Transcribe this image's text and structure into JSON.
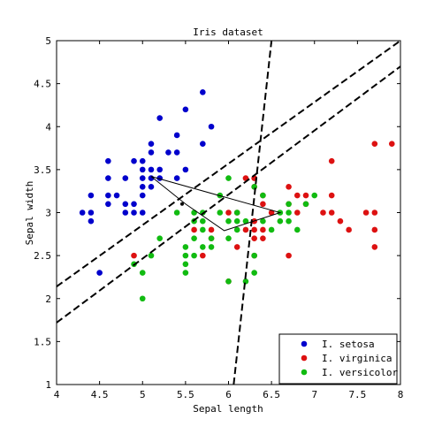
{
  "chart_data": {
    "type": "scatter",
    "title": "Iris dataset",
    "xlabel": "Sepal length",
    "ylabel": "Sepal width",
    "xlim": [
      4,
      8
    ],
    "ylim": [
      1,
      5
    ],
    "xticks": [
      "4",
      "4.5",
      "5",
      "5.5",
      "6",
      "6.5",
      "7",
      "7.5",
      "8"
    ],
    "yticks": [
      "1",
      "1.5",
      "2",
      "2.5",
      "3",
      "3.5",
      "4",
      "4.5",
      "5"
    ],
    "grid": false,
    "legend_position": "bottom-right",
    "series": [
      {
        "name": "I. setosa",
        "color": "#0000cc",
        "points": [
          [
            4.3,
            3.0
          ],
          [
            4.4,
            2.9
          ],
          [
            4.4,
            3.0
          ],
          [
            4.4,
            3.2
          ],
          [
            4.5,
            2.3
          ],
          [
            4.6,
            3.1
          ],
          [
            4.6,
            3.2
          ],
          [
            4.6,
            3.4
          ],
          [
            4.6,
            3.6
          ],
          [
            4.7,
            3.2
          ],
          [
            4.8,
            3.0
          ],
          [
            4.8,
            3.1
          ],
          [
            4.8,
            3.4
          ],
          [
            4.9,
            3.0
          ],
          [
            4.9,
            3.1
          ],
          [
            4.9,
            3.6
          ],
          [
            5.0,
            3.0
          ],
          [
            5.0,
            3.2
          ],
          [
            5.0,
            3.3
          ],
          [
            5.0,
            3.4
          ],
          [
            5.0,
            3.5
          ],
          [
            5.0,
            3.6
          ],
          [
            5.1,
            3.3
          ],
          [
            5.1,
            3.4
          ],
          [
            5.1,
            3.5
          ],
          [
            5.1,
            3.7
          ],
          [
            5.1,
            3.8
          ],
          [
            5.2,
            3.4
          ],
          [
            5.2,
            3.5
          ],
          [
            5.2,
            4.1
          ],
          [
            5.3,
            3.7
          ],
          [
            5.4,
            3.4
          ],
          [
            5.4,
            3.7
          ],
          [
            5.4,
            3.9
          ],
          [
            5.5,
            3.5
          ],
          [
            5.5,
            4.2
          ],
          [
            5.7,
            3.8
          ],
          [
            5.7,
            4.4
          ],
          [
            5.8,
            4.0
          ]
        ]
      },
      {
        "name": "I. virginica",
        "color": "#dd1111",
        "points": [
          [
            4.9,
            2.5
          ],
          [
            5.6,
            2.8
          ],
          [
            5.7,
            2.5
          ],
          [
            5.8,
            2.7
          ],
          [
            5.8,
            2.8
          ],
          [
            6.0,
            2.2
          ],
          [
            6.0,
            3.0
          ],
          [
            6.1,
            2.6
          ],
          [
            6.1,
            3.0
          ],
          [
            6.2,
            2.8
          ],
          [
            6.2,
            3.4
          ],
          [
            6.3,
            2.5
          ],
          [
            6.3,
            2.7
          ],
          [
            6.3,
            2.8
          ],
          [
            6.3,
            2.9
          ],
          [
            6.3,
            3.3
          ],
          [
            6.3,
            3.4
          ],
          [
            6.4,
            2.7
          ],
          [
            6.4,
            2.8
          ],
          [
            6.4,
            3.1
          ],
          [
            6.4,
            3.2
          ],
          [
            6.5,
            3.0
          ],
          [
            6.7,
            2.5
          ],
          [
            6.7,
            3.1
          ],
          [
            6.7,
            3.3
          ],
          [
            6.8,
            3.0
          ],
          [
            6.8,
            3.2
          ],
          [
            6.9,
            3.1
          ],
          [
            6.9,
            3.2
          ],
          [
            7.1,
            3.0
          ],
          [
            7.2,
            3.0
          ],
          [
            7.2,
            3.2
          ],
          [
            7.2,
            3.6
          ],
          [
            7.3,
            2.9
          ],
          [
            7.4,
            2.8
          ],
          [
            7.6,
            3.0
          ],
          [
            7.7,
            2.6
          ],
          [
            7.7,
            2.8
          ],
          [
            7.7,
            3.0
          ],
          [
            7.7,
            3.8
          ],
          [
            7.9,
            3.8
          ]
        ]
      },
      {
        "name": "I. versicolor",
        "color": "#11bb11",
        "points": [
          [
            4.9,
            2.4
          ],
          [
            5.0,
            2.0
          ],
          [
            5.0,
            2.3
          ],
          [
            5.1,
            2.5
          ],
          [
            5.2,
            2.7
          ],
          [
            5.4,
            3.0
          ],
          [
            5.5,
            2.3
          ],
          [
            5.5,
            2.4
          ],
          [
            5.5,
            2.5
          ],
          [
            5.5,
            2.6
          ],
          [
            5.6,
            2.5
          ],
          [
            5.6,
            2.7
          ],
          [
            5.6,
            2.9
          ],
          [
            5.6,
            3.0
          ],
          [
            5.7,
            2.6
          ],
          [
            5.7,
            2.8
          ],
          [
            5.7,
            2.9
          ],
          [
            5.7,
            3.0
          ],
          [
            5.8,
            2.6
          ],
          [
            5.8,
            2.7
          ],
          [
            5.9,
            3.0
          ],
          [
            5.9,
            3.2
          ],
          [
            6.0,
            2.2
          ],
          [
            6.0,
            2.7
          ],
          [
            6.0,
            2.9
          ],
          [
            6.0,
            3.4
          ],
          [
            6.1,
            2.8
          ],
          [
            6.1,
            2.9
          ],
          [
            6.1,
            3.0
          ],
          [
            6.2,
            2.2
          ],
          [
            6.2,
            2.9
          ],
          [
            6.3,
            2.3
          ],
          [
            6.3,
            2.5
          ],
          [
            6.3,
            3.3
          ],
          [
            6.4,
            2.9
          ],
          [
            6.4,
            3.2
          ],
          [
            6.5,
            2.8
          ],
          [
            6.6,
            2.9
          ],
          [
            6.6,
            3.0
          ],
          [
            6.7,
            2.9
          ],
          [
            6.7,
            3.0
          ],
          [
            6.7,
            3.1
          ],
          [
            6.8,
            2.8
          ],
          [
            6.9,
            3.1
          ],
          [
            7.0,
            3.2
          ]
        ]
      }
    ],
    "dashed_lines": [
      {
        "points": [
          [
            4.0,
            2.14
          ],
          [
            8.0,
            5.0
          ]
        ]
      },
      {
        "points": [
          [
            4.0,
            1.72
          ],
          [
            8.0,
            4.7
          ]
        ]
      },
      {
        "points": [
          [
            6.06,
            1.0
          ],
          [
            6.5,
            5.0
          ]
        ]
      }
    ],
    "polygon": [
      [
        5.1,
        3.42
      ],
      [
        5.5,
        3.1
      ],
      [
        5.95,
        2.79
      ],
      [
        6.6,
        3.0
      ],
      [
        5.1,
        3.42
      ]
    ],
    "polygon_vertex_mark": [
      5.46,
      3.1
    ]
  }
}
